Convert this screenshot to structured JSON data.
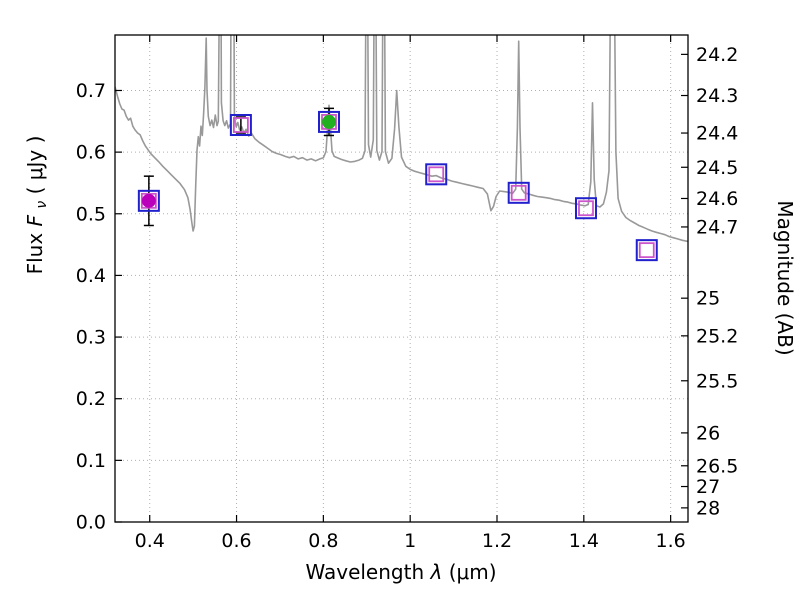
{
  "figure": {
    "background": "#ffffff"
  },
  "chart_data": {
    "type": "line+scatter",
    "title": "",
    "xlabel": {
      "prefix": "Wavelength ",
      "symbol": "λ",
      "suffix": " (μm)"
    },
    "ylabel_left": {
      "prefix": "Flux ",
      "symbol": "F",
      "subscript": "ν",
      "suffix": " ( μJy )"
    },
    "ylabel_right": "Magnitude (AB)",
    "xlim": [
      0.32,
      1.64
    ],
    "ylim": [
      0,
      0.79
    ],
    "grid": true,
    "grid_color": "#b0b0b0",
    "ab_zeropoint": 23.9,
    "x_ticks": [
      {
        "v": 0.4,
        "label": "0.4"
      },
      {
        "v": 0.6,
        "label": "0.6"
      },
      {
        "v": 0.8,
        "label": "0.8"
      },
      {
        "v": 1.0,
        "label": "1"
      },
      {
        "v": 1.2,
        "label": "1.2"
      },
      {
        "v": 1.4,
        "label": "1.4"
      },
      {
        "v": 1.6,
        "label": "1.6"
      }
    ],
    "y_ticks_left": [
      {
        "v": 0.0,
        "label": "0.0"
      },
      {
        "v": 0.1,
        "label": "0.1"
      },
      {
        "v": 0.2,
        "label": "0.2"
      },
      {
        "v": 0.3,
        "label": "0.3"
      },
      {
        "v": 0.4,
        "label": "0.4"
      },
      {
        "v": 0.5,
        "label": "0.5"
      },
      {
        "v": 0.6,
        "label": "0.6"
      },
      {
        "v": 0.7,
        "label": "0.7"
      }
    ],
    "y_ticks_right": [
      {
        "m": 24.2,
        "label": "24.2"
      },
      {
        "m": 24.3,
        "label": "24.3"
      },
      {
        "m": 24.4,
        "label": "24.4"
      },
      {
        "m": 24.5,
        "label": "24.5"
      },
      {
        "m": 24.6,
        "label": "24.6"
      },
      {
        "m": 24.7,
        "label": "24.7"
      },
      {
        "m": 25.0,
        "label": "25"
      },
      {
        "m": 25.2,
        "label": "25.2"
      },
      {
        "m": 25.5,
        "label": "25.5"
      },
      {
        "m": 26.0,
        "label": "26"
      },
      {
        "m": 26.5,
        "label": "26.5"
      },
      {
        "m": 27.0,
        "label": "27"
      },
      {
        "m": 28.0,
        "label": "28"
      }
    ],
    "spectrum_color": "#999999",
    "spectrum": [
      [
        0.32,
        0.706
      ],
      [
        0.326,
        0.69
      ],
      [
        0.331,
        0.678
      ],
      [
        0.336,
        0.67
      ],
      [
        0.341,
        0.668
      ],
      [
        0.346,
        0.658
      ],
      [
        0.351,
        0.652
      ],
      [
        0.356,
        0.655
      ],
      [
        0.361,
        0.642
      ],
      [
        0.366,
        0.636
      ],
      [
        0.372,
        0.631
      ],
      [
        0.378,
        0.628
      ],
      [
        0.384,
        0.618
      ],
      [
        0.39,
        0.61
      ],
      [
        0.396,
        0.604
      ],
      [
        0.402,
        0.598
      ],
      [
        0.41,
        0.592
      ],
      [
        0.42,
        0.585
      ],
      [
        0.43,
        0.577
      ],
      [
        0.44,
        0.57
      ],
      [
        0.45,
        0.563
      ],
      [
        0.46,
        0.556
      ],
      [
        0.47,
        0.549
      ],
      [
        0.48,
        0.539
      ],
      [
        0.488,
        0.526
      ],
      [
        0.493,
        0.507
      ],
      [
        0.497,
        0.486
      ],
      [
        0.5,
        0.472
      ],
      [
        0.503,
        0.48
      ],
      [
        0.506,
        0.545
      ],
      [
        0.509,
        0.603
      ],
      [
        0.512,
        0.625
      ],
      [
        0.515,
        0.61
      ],
      [
        0.518,
        0.642
      ],
      [
        0.521,
        0.627
      ],
      [
        0.524,
        0.662
      ],
      [
        0.527,
        0.705
      ],
      [
        0.53,
        0.785
      ],
      [
        0.532,
        0.7
      ],
      [
        0.535,
        0.658
      ],
      [
        0.539,
        0.643
      ],
      [
        0.543,
        0.652
      ],
      [
        0.547,
        0.64
      ],
      [
        0.551,
        0.66
      ],
      [
        0.555,
        0.643
      ],
      [
        0.558,
        0.65
      ],
      [
        0.561,
        0.9
      ],
      [
        0.563,
        1.1
      ],
      [
        0.565,
        0.68
      ],
      [
        0.569,
        0.651
      ],
      [
        0.573,
        0.643
      ],
      [
        0.577,
        0.651
      ],
      [
        0.581,
        0.639
      ],
      [
        0.586,
        0.646
      ],
      [
        0.589,
        1.15
      ],
      [
        0.592,
        1.15
      ],
      [
        0.595,
        0.66
      ],
      [
        0.599,
        0.641
      ],
      [
        0.603,
        0.648
      ],
      [
        0.607,
        0.636
      ],
      [
        0.612,
        0.641
      ],
      [
        0.617,
        0.631
      ],
      [
        0.622,
        0.637
      ],
      [
        0.628,
        0.626
      ],
      [
        0.634,
        0.631
      ],
      [
        0.642,
        0.622
      ],
      [
        0.652,
        0.616
      ],
      [
        0.662,
        0.611
      ],
      [
        0.672,
        0.606
      ],
      [
        0.682,
        0.601
      ],
      [
        0.692,
        0.598
      ],
      [
        0.702,
        0.596
      ],
      [
        0.712,
        0.593
      ],
      [
        0.722,
        0.591
      ],
      [
        0.732,
        0.593
      ],
      [
        0.742,
        0.589
      ],
      [
        0.752,
        0.591
      ],
      [
        0.762,
        0.587
      ],
      [
        0.772,
        0.589
      ],
      [
        0.782,
        0.586
      ],
      [
        0.792,
        0.589
      ],
      [
        0.8,
        0.591
      ],
      [
        0.806,
        0.601
      ],
      [
        0.81,
        0.642
      ],
      [
        0.813,
        0.676
      ],
      [
        0.816,
        0.643
      ],
      [
        0.82,
        0.602
      ],
      [
        0.825,
        0.593
      ],
      [
        0.832,
        0.591
      ],
      [
        0.842,
        0.588
      ],
      [
        0.852,
        0.586
      ],
      [
        0.862,
        0.584
      ],
      [
        0.872,
        0.585
      ],
      [
        0.882,
        0.587
      ],
      [
        0.89,
        0.59
      ],
      [
        0.896,
        0.602
      ],
      [
        0.9,
        1.1
      ],
      [
        0.904,
        0.612
      ],
      [
        0.909,
        0.592
      ],
      [
        0.915,
        0.62
      ],
      [
        0.919,
        1.1
      ],
      [
        0.923,
        0.603
      ],
      [
        0.929,
        0.587
      ],
      [
        0.935,
        0.601
      ],
      [
        0.939,
        1.1
      ],
      [
        0.943,
        0.601
      ],
      [
        0.95,
        0.582
      ],
      [
        0.958,
        0.59
      ],
      [
        0.964,
        0.638
      ],
      [
        0.969,
        0.7
      ],
      [
        0.974,
        0.641
      ],
      [
        0.98,
        0.592
      ],
      [
        0.99,
        0.577
      ],
      [
        1.0,
        0.572
      ],
      [
        1.01,
        0.569
      ],
      [
        1.02,
        0.567
      ],
      [
        1.03,
        0.565
      ],
      [
        1.04,
        0.563
      ],
      [
        1.05,
        0.561
      ],
      [
        1.06,
        0.562
      ],
      [
        1.072,
        0.558
      ],
      [
        1.084,
        0.556
      ],
      [
        1.096,
        0.553
      ],
      [
        1.108,
        0.551
      ],
      [
        1.12,
        0.549
      ],
      [
        1.132,
        0.547
      ],
      [
        1.144,
        0.545
      ],
      [
        1.156,
        0.543
      ],
      [
        1.168,
        0.541
      ],
      [
        1.178,
        0.532
      ],
      [
        1.186,
        0.505
      ],
      [
        1.192,
        0.512
      ],
      [
        1.198,
        0.528
      ],
      [
        1.206,
        0.537
      ],
      [
        1.216,
        0.536
      ],
      [
        1.226,
        0.535
      ],
      [
        1.236,
        0.533
      ],
      [
        1.243,
        0.54
      ],
      [
        1.247,
        0.64
      ],
      [
        1.25,
        0.78
      ],
      [
        1.253,
        0.64
      ],
      [
        1.257,
        0.54
      ],
      [
        1.263,
        0.534
      ],
      [
        1.273,
        0.532
      ],
      [
        1.283,
        0.53
      ],
      [
        1.293,
        0.528
      ],
      [
        1.303,
        0.527
      ],
      [
        1.313,
        0.526
      ],
      [
        1.323,
        0.525
      ],
      [
        1.333,
        0.523
      ],
      [
        1.343,
        0.522
      ],
      [
        1.353,
        0.52
      ],
      [
        1.363,
        0.519
      ],
      [
        1.373,
        0.517
      ],
      [
        1.383,
        0.516
      ],
      [
        1.393,
        0.514
      ],
      [
        1.403,
        0.513
      ],
      [
        1.41,
        0.515
      ],
      [
        1.416,
        0.552
      ],
      [
        1.42,
        0.68
      ],
      [
        1.424,
        0.556
      ],
      [
        1.429,
        0.513
      ],
      [
        1.437,
        0.511
      ],
      [
        1.445,
        0.516
      ],
      [
        1.452,
        0.535
      ],
      [
        1.458,
        0.57
      ],
      [
        1.462,
        0.9
      ],
      [
        1.466,
        1.1
      ],
      [
        1.47,
        0.9
      ],
      [
        1.474,
        0.6
      ],
      [
        1.479,
        0.525
      ],
      [
        1.487,
        0.504
      ],
      [
        1.497,
        0.494
      ],
      [
        1.507,
        0.489
      ],
      [
        1.517,
        0.485
      ],
      [
        1.527,
        0.481
      ],
      [
        1.537,
        0.478
      ],
      [
        1.547,
        0.475
      ],
      [
        1.557,
        0.472
      ],
      [
        1.567,
        0.47
      ],
      [
        1.577,
        0.468
      ],
      [
        1.587,
        0.466
      ],
      [
        1.597,
        0.463
      ],
      [
        1.607,
        0.461
      ],
      [
        1.617,
        0.459
      ],
      [
        1.627,
        0.457
      ],
      [
        1.64,
        0.455
      ]
    ],
    "photometry": {
      "square_outer_color": "#2020cc",
      "square_inner_color": "#cc55cc",
      "errorbar_color": "#000000",
      "points": [
        {
          "x": 0.398,
          "flux": 0.521,
          "err": 0.04,
          "circle_color": "#bb00bb"
        },
        {
          "x": 0.61,
          "flux": 0.644,
          "err": 0.013,
          "circle_color": null
        },
        {
          "x": 0.813,
          "flux": 0.649,
          "err": 0.022,
          "circle_color": "#1faf1f"
        },
        {
          "x": 1.06,
          "flux": 0.564,
          "err": null,
          "circle_color": null
        },
        {
          "x": 1.25,
          "flux": 0.534,
          "err": null,
          "circle_color": null
        },
        {
          "x": 1.405,
          "flux": 0.509,
          "err": null,
          "circle_color": null
        },
        {
          "x": 1.545,
          "flux": 0.441,
          "err": null,
          "circle_color": null
        }
      ]
    }
  }
}
